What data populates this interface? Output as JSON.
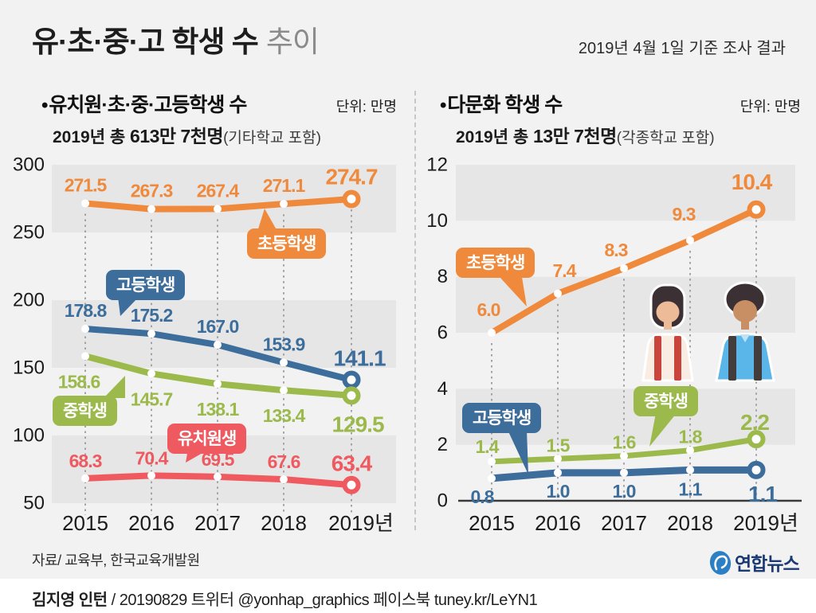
{
  "header": {
    "title_main": "유·초·중·고 학생 수",
    "title_sub": "추이",
    "date_note": "2019년 4월 1일 기준 조사 결과"
  },
  "colors": {
    "page_bg": "#f2f2f3",
    "band": "#e6e6e7",
    "dotted_guide": "#a3a3a3",
    "axis_line": "#3a3a3a",
    "orange": "#ef8a3d",
    "blue": "#3d6d9a",
    "green": "#9cba4c",
    "red": "#ee5a5f",
    "logo_blue": "#2b7fc4",
    "logo_navy": "#1b3a73"
  },
  "footer": {
    "source": "자료/ 교육부, 한국교육개발원",
    "credit_name": "김지영 인턴",
    "credit_rest": " / 20190829 트위터 @yonhap_graphics  페이스북 tuney.kr/LeYN1",
    "logo_text": "연합뉴스"
  },
  "chart_data": [
    {
      "type": "line",
      "bullet": "•",
      "title": "유치원·초·중·고등학생 수",
      "unit": "단위: 만명",
      "subtitle_prefix": "2019년 총 ",
      "subtitle_total": "613만 7천명",
      "subtitle_note": "(기타학교 포함)",
      "categories": [
        "2015",
        "2016",
        "2017",
        "2018",
        "2019년"
      ],
      "ylim": [
        50,
        300
      ],
      "yticks": [
        300,
        250,
        200,
        150,
        100,
        50
      ],
      "grid": "alternating-bands",
      "legend": "inline-bubbles",
      "series": [
        {
          "name": "초등학생",
          "color": "#ef8a3d",
          "values": [
            271.5,
            267.3,
            267.4,
            271.1,
            274.7
          ]
        },
        {
          "name": "고등학생",
          "color": "#3d6d9a",
          "values": [
            178.8,
            175.2,
            167.0,
            153.9,
            141.1
          ]
        },
        {
          "name": "중학생",
          "color": "#9cba4c",
          "values": [
            158.6,
            145.7,
            138.1,
            133.4,
            129.5
          ]
        },
        {
          "name": "유치원생",
          "color": "#ee5a5f",
          "values": [
            68.3,
            70.4,
            69.5,
            67.6,
            63.4
          ]
        }
      ]
    },
    {
      "type": "line",
      "bullet": "•",
      "title": "다문화 학생 수",
      "unit": "단위: 만명",
      "subtitle_prefix": "2019년 총 ",
      "subtitle_total": "13만 7천명",
      "subtitle_note": "(각종학교 포함)",
      "categories": [
        "2015",
        "2016",
        "2017",
        "2018",
        "2019년"
      ],
      "ylim": [
        0,
        12
      ],
      "yticks": [
        12,
        10,
        8,
        6,
        4,
        2,
        0
      ],
      "grid": "alternating-bands",
      "legend": "inline-bubbles",
      "series": [
        {
          "name": "초등학생",
          "color": "#ef8a3d",
          "values": [
            6.0,
            7.4,
            8.3,
            9.3,
            10.4
          ]
        },
        {
          "name": "중학생",
          "color": "#9cba4c",
          "values": [
            1.4,
            1.5,
            1.6,
            1.8,
            2.2
          ]
        },
        {
          "name": "고등학생",
          "color": "#3d6d9a",
          "values": [
            0.8,
            1.0,
            1.0,
            1.1,
            1.1
          ]
        }
      ]
    }
  ]
}
